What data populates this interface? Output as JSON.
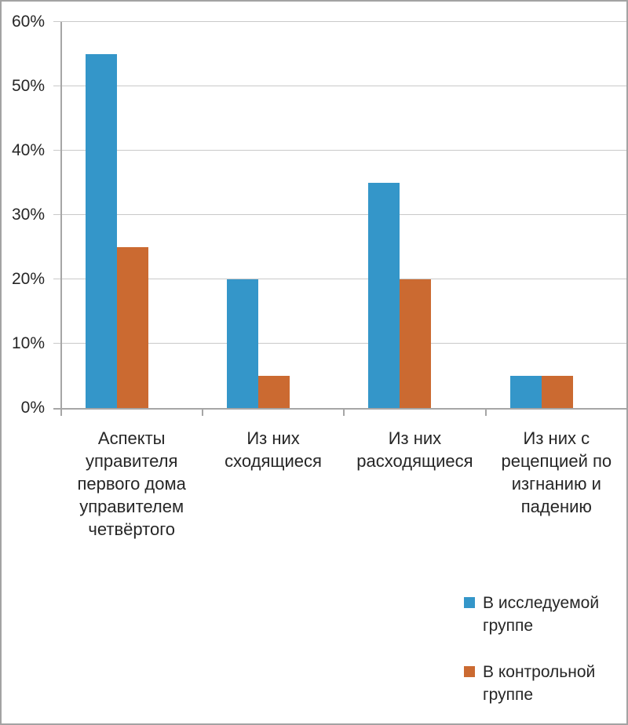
{
  "chart_data": {
    "type": "bar",
    "categories": [
      "Аспекты управителя первого дома управителем четвёртого",
      "Из них сходящиеся",
      "Из них расходящиеся",
      "Из них с рецепцией по изгнанию и падению"
    ],
    "series": [
      {
        "name": "В исследуемой группе",
        "color": "#3496C9",
        "values": [
          55,
          20,
          35,
          5
        ]
      },
      {
        "name": "В контрольной группе",
        "color": "#CB6A31",
        "values": [
          25,
          5,
          20,
          5
        ]
      }
    ],
    "title": "",
    "xlabel": "",
    "ylabel": "",
    "ylim": [
      0,
      60
    ],
    "ytick_interval": 10,
    "ytick_labels": [
      "0%",
      "10%",
      "20%",
      "30%",
      "40%",
      "50%",
      "60%"
    ],
    "grid": true,
    "legend_position": "bottom-right"
  },
  "colors": {
    "series_study": "#3496C9",
    "series_control": "#CB6A31",
    "gridline": "#c9c9c9",
    "axis": "#a6a6a6",
    "border": "#a3a3a3",
    "text": "#262626",
    "background": "#ffffff"
  }
}
